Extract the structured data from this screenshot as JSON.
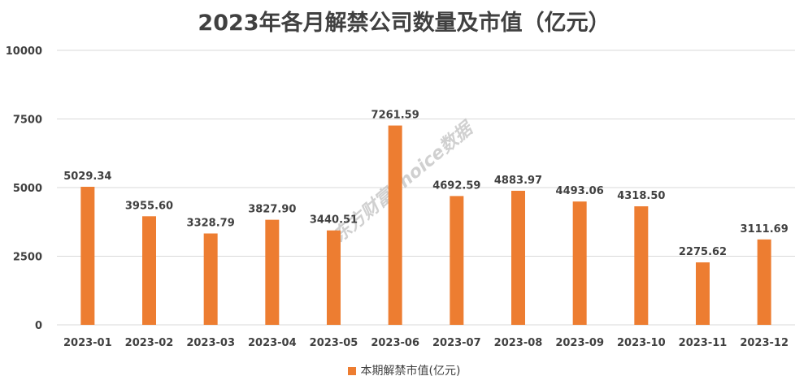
{
  "chart_data": {
    "type": "bar",
    "title": "2023年各月解禁公司数量及市值（亿元）",
    "categories": [
      "2023-01",
      "2023-02",
      "2023-03",
      "2023-04",
      "2023-05",
      "2023-06",
      "2023-07",
      "2023-08",
      "2023-09",
      "2023-10",
      "2023-11",
      "2023-12"
    ],
    "series": [
      {
        "name": "本期解禁市值(亿元)",
        "color": "#ed7d31",
        "values": [
          5029.34,
          3955.6,
          3328.79,
          3827.9,
          3440.51,
          7261.59,
          4692.59,
          4883.97,
          4493.06,
          4318.5,
          2275.62,
          3111.69
        ],
        "labels": [
          "5029.34",
          "3955.60",
          "3328.79",
          "3827.90",
          "3440.51",
          "7261.59",
          "4692.59",
          "4883.97",
          "4493.06",
          "4318.50",
          "2275.62",
          "3111.69"
        ]
      }
    ],
    "ylim": [
      0,
      10000
    ],
    "yticks": [
      0,
      2500,
      5000,
      7500,
      10000
    ],
    "grid": true,
    "legend_position": "bottom",
    "watermark": "东方财富Choice数据"
  }
}
